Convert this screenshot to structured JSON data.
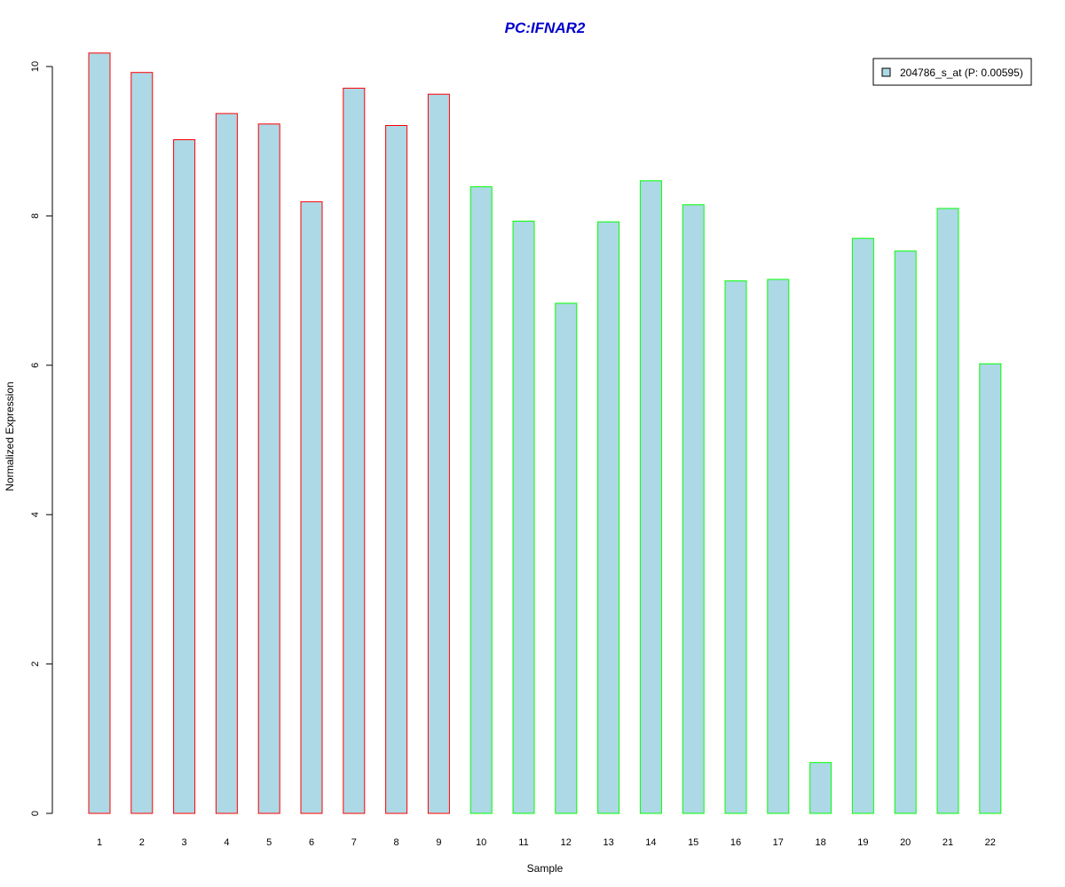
{
  "chart_data": {
    "type": "bar",
    "title": "PC:IFNAR2",
    "xlabel": "Sample",
    "ylabel": "Normalized Expression",
    "categories": [
      "1",
      "2",
      "3",
      "4",
      "5",
      "6",
      "7",
      "8",
      "9",
      "10",
      "11",
      "12",
      "13",
      "14",
      "15",
      "16",
      "17",
      "18",
      "19",
      "20",
      "21",
      "22"
    ],
    "values": [
      10.18,
      9.92,
      9.02,
      9.37,
      9.23,
      8.19,
      9.71,
      9.21,
      9.63,
      8.39,
      7.93,
      6.83,
      7.92,
      8.47,
      8.15,
      7.13,
      7.15,
      0.68,
      7.7,
      7.53,
      8.1,
      6.02
    ],
    "groups": [
      1,
      1,
      1,
      1,
      1,
      1,
      1,
      1,
      1,
      2,
      2,
      2,
      2,
      2,
      2,
      2,
      2,
      2,
      2,
      2,
      2,
      2
    ],
    "group_border_colors": {
      "1": "#ff0000",
      "2": "#00ff00"
    },
    "bar_fill": "#add8e6",
    "title_color": "#0000cc",
    "yticks": [
      0,
      2,
      4,
      6,
      8,
      10
    ],
    "ylim": [
      0,
      10.2
    ],
    "grid": false,
    "legend": {
      "placement": "top-right",
      "entries": [
        {
          "label": "204786_s_at (P: 0.00595)",
          "fill": "#add8e6"
        }
      ]
    }
  }
}
